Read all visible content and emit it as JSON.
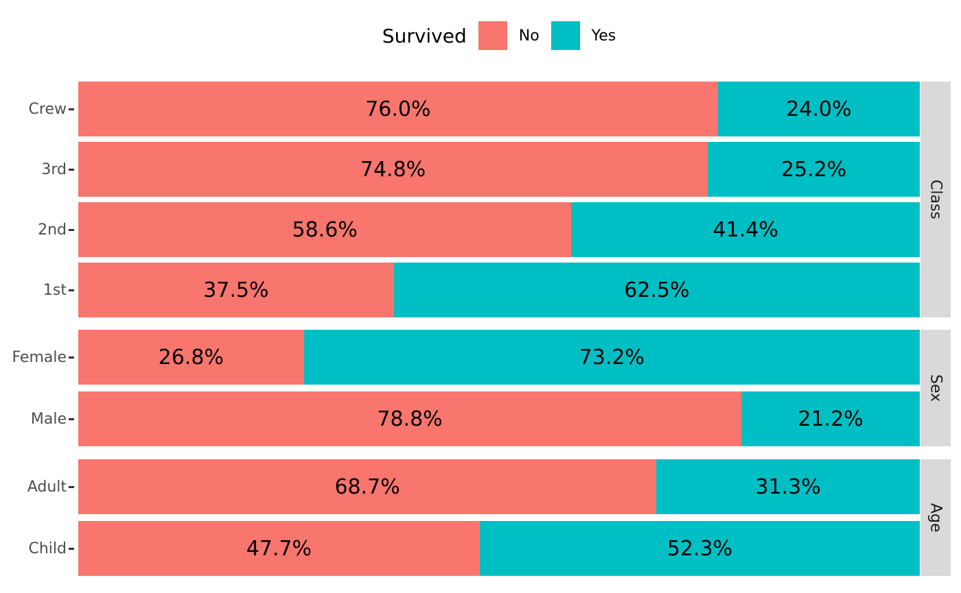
{
  "legend": {
    "title": "Survived",
    "items": [
      {
        "label": "No",
        "color": "#F8766D"
      },
      {
        "label": "Yes",
        "color": "#00BFC4"
      }
    ]
  },
  "facets": [
    {
      "label": "Class",
      "rows": [
        {
          "category": "Crew",
          "no": 76.0,
          "yes": 24.0,
          "no_label": "76.0%",
          "yes_label": "24.0%"
        },
        {
          "category": "3rd",
          "no": 74.8,
          "yes": 25.2,
          "no_label": "74.8%",
          "yes_label": "25.2%"
        },
        {
          "category": "2nd",
          "no": 58.6,
          "yes": 41.4,
          "no_label": "58.6%",
          "yes_label": "41.4%"
        },
        {
          "category": "1st",
          "no": 37.5,
          "yes": 62.5,
          "no_label": "37.5%",
          "yes_label": "62.5%"
        }
      ]
    },
    {
      "label": "Sex",
      "rows": [
        {
          "category": "Female",
          "no": 26.8,
          "yes": 73.2,
          "no_label": "26.8%",
          "yes_label": "73.2%"
        },
        {
          "category": "Male",
          "no": 78.8,
          "yes": 21.2,
          "no_label": "78.8%",
          "yes_label": "21.2%"
        }
      ]
    },
    {
      "label": "Age",
      "rows": [
        {
          "category": "Adult",
          "no": 68.7,
          "yes": 31.3,
          "no_label": "68.7%",
          "yes_label": "31.3%"
        },
        {
          "category": "Child",
          "no": 47.7,
          "yes": 52.3,
          "no_label": "47.7%",
          "yes_label": "52.3%"
        }
      ]
    }
  ],
  "colors": {
    "no": "#F8766D",
    "yes": "#00BFC4",
    "strip_background": "#D9D9D9",
    "strip_text": "#1A1A1A",
    "axis_text": "#4D4D4D",
    "tick": "#333333",
    "value_text": "#000000",
    "background": "#FFFFFF"
  },
  "chart_data": {
    "type": "bar",
    "orientation": "horizontal",
    "stacked": true,
    "normalized_percent": true,
    "title": "",
    "legend_title": "Survived",
    "legend_position": "top",
    "legend_entries": [
      "No",
      "Yes"
    ],
    "xlabel": "",
    "ylabel": "",
    "xlim": [
      0,
      100
    ],
    "grid": false,
    "facets": [
      {
        "name": "Class",
        "categories": [
          "Crew",
          "3rd",
          "2nd",
          "1st"
        ],
        "series": [
          {
            "name": "No",
            "values": [
              76.0,
              74.8,
              58.6,
              37.5
            ]
          },
          {
            "name": "Yes",
            "values": [
              24.0,
              25.2,
              41.4,
              62.5
            ]
          }
        ]
      },
      {
        "name": "Sex",
        "categories": [
          "Female",
          "Male"
        ],
        "series": [
          {
            "name": "No",
            "values": [
              26.8,
              78.8
            ]
          },
          {
            "name": "Yes",
            "values": [
              73.2,
              21.2
            ]
          }
        ]
      },
      {
        "name": "Age",
        "categories": [
          "Adult",
          "Child"
        ],
        "series": [
          {
            "name": "No",
            "values": [
              68.7,
              47.7
            ]
          },
          {
            "name": "Yes",
            "values": [
              31.3,
              52.3
            ]
          }
        ]
      }
    ]
  }
}
